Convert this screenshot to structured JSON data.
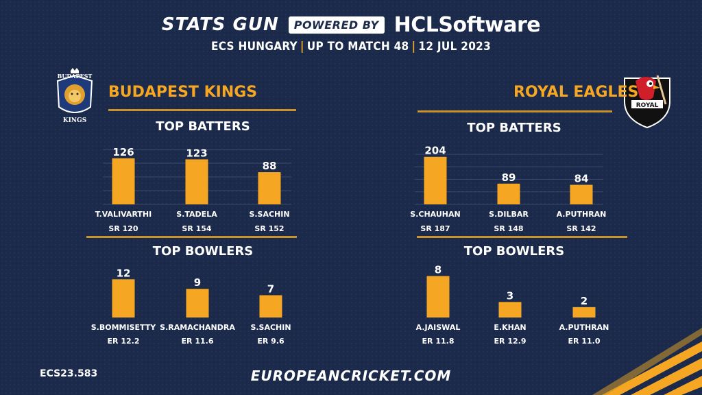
{
  "header": {
    "brand": "STATS GUN",
    "powered_by": "POWERED BY",
    "sponsor": "HCLSoftware",
    "subtitle_parts": [
      "ECS HUNGARY",
      "UP TO MATCH 48",
      "12 JUL 2023"
    ]
  },
  "teams": [
    {
      "name": "BUDAPEST KINGS",
      "logo_text_top": "BUDAPEST",
      "logo_text_bottom": "KINGS",
      "batters_title": "TOP BATTERS",
      "bowlers_title": "TOP BOWLERS"
    },
    {
      "name": "ROYAL EAGLES",
      "logo_text": "ROYAL",
      "batters_title": "TOP BATTERS",
      "bowlers_title": "TOP BOWLERS"
    }
  ],
  "footer": {
    "code": "ECS23.583",
    "website": "EUROPEANCRICKET.COM"
  },
  "colors": {
    "background": "#1b2a4b",
    "accent": "#f5a623",
    "rule": "#c9922a"
  },
  "chart_data": [
    {
      "type": "bar",
      "team": "BUDAPEST KINGS",
      "title": "TOP BATTERS",
      "categories": [
        "T.VALIVARTHI",
        "S.TADELA",
        "S.SACHIN"
      ],
      "values": [
        126,
        123,
        88
      ],
      "sublabels": [
        "SR 120",
        "SR 154",
        "SR 152"
      ],
      "ylim": [
        0,
        150
      ],
      "grid": true
    },
    {
      "type": "bar",
      "team": "BUDAPEST KINGS",
      "title": "TOP BOWLERS",
      "categories": [
        "S.BOMMISETTY",
        "S.RAMACHANDRA",
        "S.SACHIN"
      ],
      "values": [
        12,
        9,
        7
      ],
      "sublabels": [
        "ER 12.2",
        "ER 11.6",
        "ER 9.6"
      ],
      "ylim": [
        0,
        14
      ],
      "grid": false
    },
    {
      "type": "bar",
      "team": "ROYAL EAGLES",
      "title": "TOP BATTERS",
      "categories": [
        "S.CHAUHAN",
        "S.DILBAR",
        "A.PUTHRAN"
      ],
      "values": [
        204,
        89,
        84
      ],
      "sublabels": [
        "SR 187",
        "SR 148",
        "SR 142"
      ],
      "ylim": [
        0,
        215
      ],
      "grid": true
    },
    {
      "type": "bar",
      "team": "ROYAL EAGLES",
      "title": "TOP BOWLERS",
      "categories": [
        "A.JAISWAL",
        "E.KHAN",
        "A.PUTHRAN"
      ],
      "values": [
        8,
        3,
        2
      ],
      "sublabels": [
        "ER 11.8",
        "ER 12.9",
        "ER 11.0"
      ],
      "ylim": [
        0,
        9
      ],
      "grid": false
    }
  ]
}
